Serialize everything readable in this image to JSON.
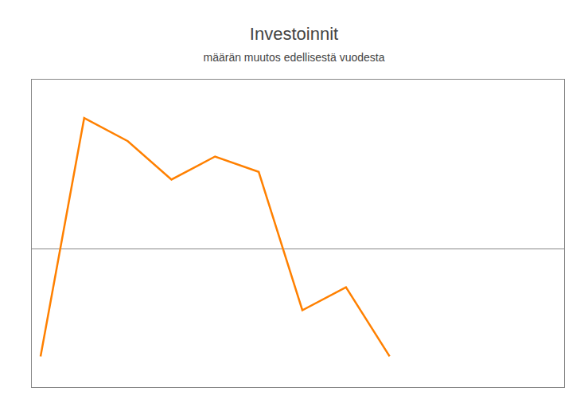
{
  "chart_data": {
    "type": "line",
    "title": "Investoinnit",
    "subtitle": "määrän muutos edellisestä vuodesta",
    "x": [
      0,
      1,
      2,
      3,
      4,
      5,
      6,
      7,
      8
    ],
    "values": [
      -14,
      17,
      14,
      9,
      12,
      10,
      -8,
      -5,
      -14
    ],
    "color": "#FF8000",
    "xlim": [
      -0.2,
      12
    ],
    "ylim": [
      -18,
      22
    ],
    "tick_labels": false,
    "grid": false
  }
}
